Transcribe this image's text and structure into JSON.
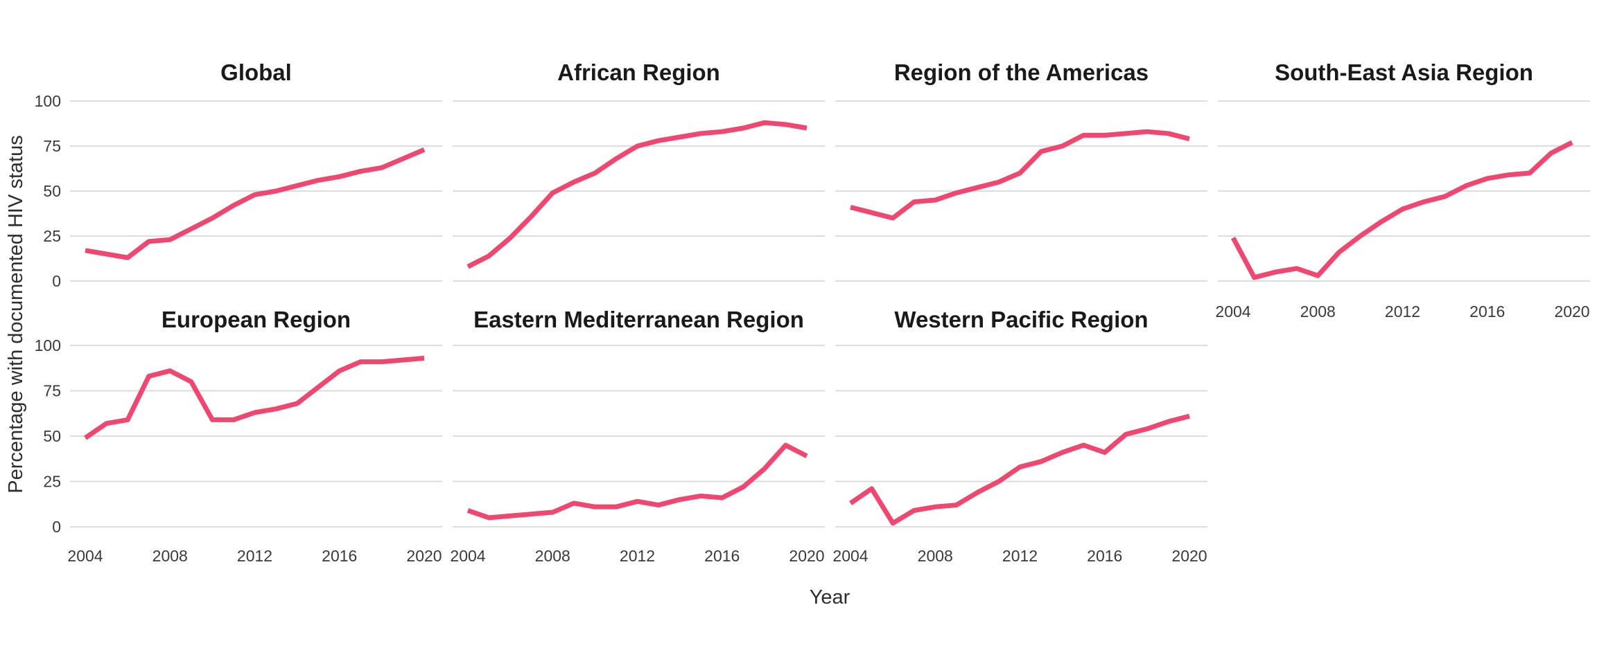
{
  "page": {
    "background": "#ffffff"
  },
  "chart_data": {
    "type": "line",
    "layout": "faceted-small-multiples",
    "grid": "horizontal-only",
    "legend": "none",
    "title": "",
    "xlabel": "Year",
    "ylabel": "Percentage with documented HIV status",
    "x": [
      2004,
      2005,
      2006,
      2007,
      2008,
      2009,
      2010,
      2011,
      2012,
      2013,
      2014,
      2015,
      2016,
      2017,
      2018,
      2019,
      2020
    ],
    "xticks": [
      2004,
      2008,
      2012,
      2016,
      2020
    ],
    "yticks": [
      0,
      25,
      50,
      75,
      100
    ],
    "ylim": [
      0,
      100
    ],
    "line_color": "#EF476F",
    "grid_color": "#D8D8D8",
    "tick_text_color": "#3a3a3a",
    "title_text_color": "#1a1a1a",
    "facets": [
      {
        "title": "Global",
        "values": [
          17,
          15,
          13,
          22,
          23,
          29,
          35,
          42,
          48,
          50,
          53,
          56,
          58,
          61,
          63,
          68,
          73
        ]
      },
      {
        "title": "African Region",
        "values": [
          8,
          14,
          24,
          36,
          49,
          55,
          60,
          68,
          75,
          78,
          80,
          82,
          83,
          85,
          88,
          87,
          85
        ]
      },
      {
        "title": "Region of the Americas",
        "values": [
          41,
          38,
          35,
          44,
          45,
          49,
          52,
          55,
          60,
          72,
          75,
          81,
          81,
          82,
          83,
          82,
          79
        ]
      },
      {
        "title": "South-East Asia Region",
        "values": [
          24,
          2,
          5,
          7,
          3,
          16,
          25,
          33,
          40,
          44,
          47,
          53,
          57,
          59,
          60,
          71,
          77
        ]
      },
      {
        "title": "European Region",
        "values": [
          49,
          57,
          59,
          83,
          86,
          80,
          59,
          59,
          63,
          65,
          68,
          77,
          86,
          91,
          91,
          92,
          93
        ]
      },
      {
        "title": "Eastern Mediterranean Region",
        "values": [
          9,
          5,
          6,
          7,
          8,
          13,
          11,
          11,
          14,
          12,
          15,
          17,
          16,
          22,
          32,
          45,
          39
        ]
      },
      {
        "title": "Western Pacific Region",
        "values": [
          13,
          21,
          2,
          9,
          11,
          12,
          19,
          25,
          33,
          36,
          41,
          45,
          41,
          51,
          54,
          58,
          61
        ]
      }
    ]
  }
}
